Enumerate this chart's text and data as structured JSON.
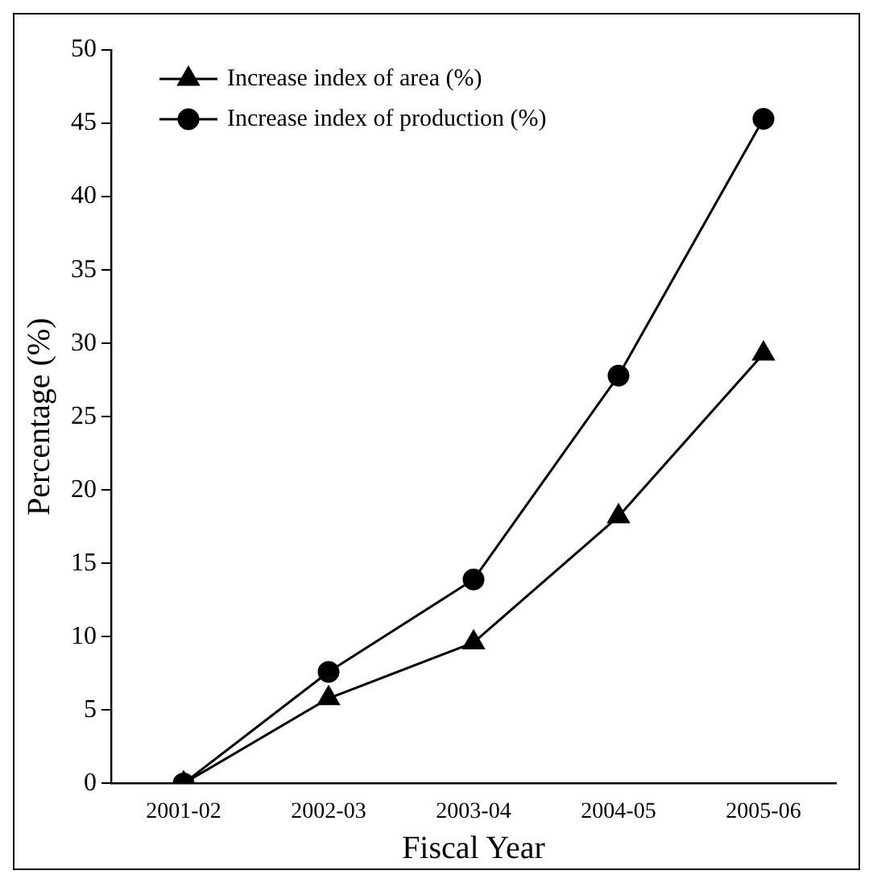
{
  "chart_data": {
    "type": "line",
    "xlabel": "Fiscal Year",
    "ylabel": "Percentage (%)",
    "categories": [
      "2001-02",
      "2002-03",
      "2003-04",
      "2004-05",
      "2005-06"
    ],
    "series": [
      {
        "name": "Increase index of area (%)",
        "color": "#000000",
        "marker": "triangle",
        "values": [
          0,
          5.8,
          9.6,
          18.2,
          29.3
        ]
      },
      {
        "name": "Increase index of production (%)",
        "color": "#000000",
        "marker": "circle",
        "values": [
          0,
          7.6,
          13.9,
          27.8,
          45.3
        ]
      }
    ],
    "ylim": [
      0,
      50
    ],
    "yticks": [
      0,
      5,
      10,
      15,
      20,
      25,
      30,
      35,
      40,
      45,
      50
    ],
    "grid": false,
    "legend": "top left",
    "line_style": "solid"
  }
}
